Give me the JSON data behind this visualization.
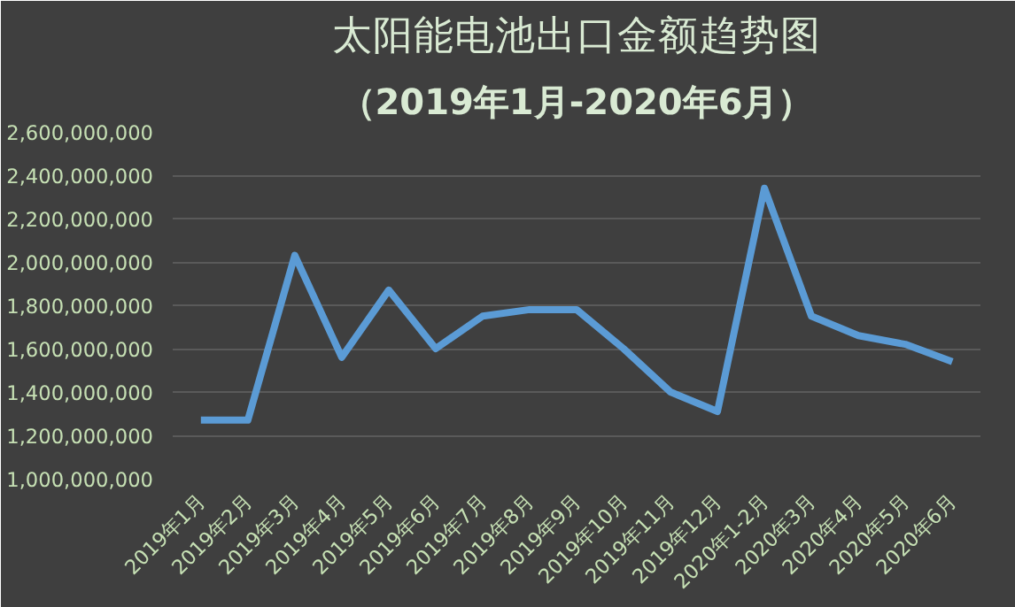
{
  "chart_data": {
    "type": "line",
    "title": "太阳能电池出口金额趋势图",
    "subtitle": "（2019年1月-2020年6月）",
    "categories": [
      "2019年1月",
      "2019年2月",
      "2019年3月",
      "2019年4月",
      "2019年5月",
      "2019年6月",
      "2019年7月",
      "2019年8月",
      "2019年9月",
      "2019年10月",
      "2019年11月",
      "2019年12月",
      "2020年1-2月",
      "2020年3月",
      "2020年4月",
      "2020年5月",
      "2020年6月"
    ],
    "series": [
      {
        "color": "#5b9bd5",
        "values": [
          1270000000,
          1270000000,
          2030000000,
          1560000000,
          1870000000,
          1600000000,
          1750000000,
          1780000000,
          1780000000,
          1600000000,
          1400000000,
          1310000000,
          2340000000,
          1750000000,
          1660000000,
          1620000000,
          1540000000
        ]
      }
    ],
    "ylim": [
      1000000000,
      2600000000
    ],
    "yticks": [
      {
        "value": 1000000000,
        "label": "1,000,000,000"
      },
      {
        "value": 1200000000,
        "label": "1,200,000,000"
      },
      {
        "value": 1400000000,
        "label": "1,400,000,000"
      },
      {
        "value": 1600000000,
        "label": "1,600,000,000"
      },
      {
        "value": 1800000000,
        "label": "1,800,000,000"
      },
      {
        "value": 2000000000,
        "label": "2,000,000,000"
      },
      {
        "value": 2200000000,
        "label": "2,200,000,000"
      },
      {
        "value": 2400000000,
        "label": "2,400,000,000"
      },
      {
        "value": 2600000000,
        "label": "2,600,000,000"
      }
    ],
    "grid": "y",
    "marker": "none",
    "line_style": "solid"
  }
}
